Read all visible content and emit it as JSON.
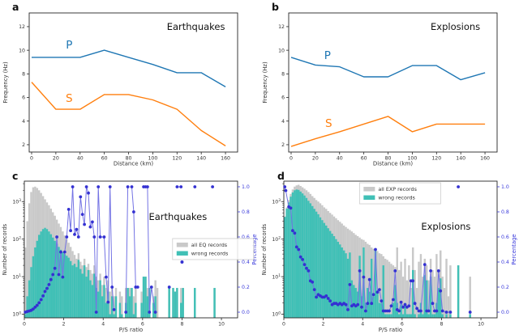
{
  "colors": {
    "p_blue": "#1f77b4",
    "s_orange": "#ff7f0e",
    "all_gray": "#c9c9c9",
    "wrong_teal": "#40c0b6",
    "pct_line": "#7473e4",
    "pct_dot": "#3431d2",
    "pct_axis": "#3b3bdb",
    "spine": "#262626",
    "tick_text": "#333333"
  },
  "chart_data": [
    {
      "letter": "a",
      "type": "line",
      "title": "Earthquakes",
      "title_frac": [
        0.8,
        0.1
      ],
      "xlabel": "Distance (km)",
      "ylabel": "Frequency (Hz)",
      "xlim": [
        -2,
        170
      ],
      "ylim": [
        1.38,
        13.16
      ],
      "xticks": [
        0,
        20,
        40,
        60,
        80,
        100,
        120,
        140,
        160
      ],
      "yticks": [
        2,
        4,
        6,
        8,
        10,
        12
      ],
      "series": [
        {
          "name": "P",
          "color_key": "p_blue",
          "label_pos": [
            31,
            10.45
          ],
          "x": [
            0,
            20,
            40,
            60,
            80,
            100,
            120,
            140,
            160
          ],
          "y": [
            9.4,
            9.4,
            9.4,
            10.0,
            9.4,
            8.8,
            8.1,
            8.1,
            6.9
          ]
        },
        {
          "name": "S",
          "color_key": "s_orange",
          "label_pos": [
            31,
            5.95
          ],
          "x": [
            0,
            20,
            40,
            60,
            80,
            100,
            120,
            140,
            160
          ],
          "y": [
            7.3,
            5.0,
            5.0,
            6.25,
            6.25,
            5.8,
            5.0,
            3.2,
            1.9
          ]
        }
      ]
    },
    {
      "letter": "b",
      "type": "line",
      "title": "Explosions",
      "title_frac": [
        0.8,
        0.1
      ],
      "xlabel": "Distance (km)",
      "ylabel": "Frequency (Hz)",
      "xlim": [
        -2,
        170
      ],
      "ylim": [
        1.38,
        13.16
      ],
      "xticks": [
        0,
        20,
        40,
        60,
        80,
        100,
        120,
        140,
        160
      ],
      "yticks": [
        2,
        4,
        6,
        8,
        10,
        12
      ],
      "series": [
        {
          "name": "P",
          "color_key": "p_blue",
          "label_pos": [
            30,
            9.55
          ],
          "x": [
            0,
            20,
            40,
            60,
            80,
            100,
            120,
            140,
            160
          ],
          "y": [
            9.4,
            8.75,
            8.6,
            7.75,
            7.75,
            8.7,
            8.7,
            7.5,
            8.1
          ]
        },
        {
          "name": "S",
          "color_key": "s_orange",
          "label_pos": [
            31,
            3.8
          ],
          "x": [
            0,
            20,
            40,
            60,
            80,
            100,
            120,
            140,
            160
          ],
          "y": [
            1.85,
            2.5,
            3.1,
            3.75,
            4.4,
            3.1,
            3.75,
            3.75,
            3.75
          ]
        }
      ]
    },
    {
      "letter": "c",
      "type": "histogram",
      "title": "Earthquakes",
      "title_frac": [
        0.72,
        0.26
      ],
      "xlabel": "P/S ratio",
      "ylabel": "Number of records",
      "ylabel_right": "Percentage",
      "xlim": [
        0,
        10.82
      ],
      "xticks": [
        0,
        2,
        4,
        6,
        8,
        10
      ],
      "log_decades": [
        0,
        1,
        2,
        3
      ],
      "count_range": [
        0.8,
        3500
      ],
      "pct_ticks": [
        "0.0",
        "0.2",
        "0.4",
        "0.6",
        "0.8",
        "1.0"
      ],
      "bin_start": 0,
      "bin_width": 0.1,
      "all_label": "all EQ records",
      "wrong_label": "wrong records",
      "legend_frac": [
        0.695,
        0.42
      ],
      "legend_dot": [
        8.0,
        0.4
      ],
      "all_counts": [
        60,
        300,
        900,
        1800,
        2400,
        2500,
        2300,
        2000,
        1700,
        1400,
        1150,
        950,
        800,
        650,
        520,
        420,
        330,
        260,
        210,
        160,
        125,
        100,
        80,
        62,
        48,
        38,
        30,
        42,
        25,
        20,
        30,
        18,
        22,
        15,
        12,
        20,
        10,
        8,
        12,
        6,
        10,
        5,
        8,
        4,
        5,
        3,
        5,
        0,
        4,
        3,
        0,
        5,
        5,
        5,
        5,
        3,
        5,
        0,
        0,
        4,
        10,
        10,
        5,
        5,
        0,
        3,
        8,
        5,
        0,
        0,
        0,
        0,
        0,
        5,
        0,
        5,
        4,
        5,
        0,
        5,
        5,
        0,
        0,
        0,
        0,
        0,
        5,
        0,
        0,
        0,
        0,
        0,
        0,
        0,
        0,
        0,
        5,
        0,
        0,
        0
      ],
      "wrong_counts": [
        1,
        3,
        8,
        18,
        35,
        60,
        90,
        130,
        160,
        185,
        200,
        185,
        160,
        135,
        110,
        90,
        75,
        62,
        52,
        45,
        40,
        36,
        32,
        26,
        20,
        22,
        18,
        28,
        16,
        12,
        20,
        10,
        15,
        8,
        6,
        12,
        5,
        4,
        8,
        3,
        6,
        2,
        4,
        1,
        3,
        1,
        3,
        0,
        2,
        1,
        0,
        2,
        5,
        3,
        5,
        1,
        2,
        0,
        0,
        2,
        10,
        10,
        3,
        5,
        0,
        2,
        3,
        0,
        0,
        0,
        0,
        0,
        0,
        5,
        0,
        5,
        4,
        5,
        0,
        2,
        5,
        0,
        0,
        0,
        0,
        0,
        5,
        0,
        0,
        0,
        0,
        0,
        0,
        0,
        0,
        0,
        5,
        0,
        0,
        0
      ],
      "percentage": [
        [
          0.05,
          0
        ],
        [
          0.15,
          0.005
        ],
        [
          0.25,
          0.01
        ],
        [
          0.35,
          0.015
        ],
        [
          0.45,
          0.025
        ],
        [
          0.55,
          0.04
        ],
        [
          0.65,
          0.055
        ],
        [
          0.75,
          0.075
        ],
        [
          0.85,
          0.1
        ],
        [
          0.95,
          0.13
        ],
        [
          1.05,
          0.165
        ],
        [
          1.15,
          0.19
        ],
        [
          1.25,
          0.22
        ],
        [
          1.35,
          0.26
        ],
        [
          1.45,
          0.3
        ],
        [
          1.55,
          0.35
        ],
        [
          1.65,
          0.6
        ],
        [
          1.75,
          0.3
        ],
        [
          1.85,
          0.48
        ],
        [
          1.95,
          0.28
        ],
        [
          2.05,
          0.48
        ],
        [
          2.15,
          0.6
        ],
        [
          2.25,
          0.82
        ],
        [
          2.35,
          0.65
        ],
        [
          2.45,
          1
        ],
        [
          2.55,
          0.62
        ],
        [
          2.65,
          0.66
        ],
        [
          2.75,
          0.6
        ],
        [
          2.85,
          0.92
        ],
        [
          2.95,
          0.78
        ],
        [
          3.05,
          0.7
        ],
        [
          3.15,
          1
        ],
        [
          3.25,
          0.95
        ],
        [
          3.35,
          0.68
        ],
        [
          3.45,
          0.72
        ],
        [
          3.55,
          0.6
        ],
        [
          3.65,
          0
        ],
        [
          3.75,
          1
        ],
        [
          3.85,
          0.6
        ],
        [
          4.05,
          0.6
        ],
        [
          4.15,
          0.28
        ],
        [
          4.25,
          0.08
        ],
        [
          4.35,
          1
        ],
        [
          4.45,
          0.2
        ],
        [
          4.55,
          0.02
        ],
        null,
        [
          5.15,
          0
        ],
        [
          5.25,
          1
        ],
        null,
        [
          5.45,
          1
        ],
        [
          5.55,
          0.8
        ],
        [
          5.65,
          0.2
        ],
        [
          5.75,
          0.2
        ],
        null,
        [
          6.05,
          1
        ],
        [
          6.15,
          1
        ],
        [
          6.25,
          1
        ],
        [
          6.35,
          0
        ],
        [
          6.45,
          0.2
        ],
        [
          6.65,
          0
        ],
        null,
        [
          7.35,
          0.2
        ],
        null,
        [
          7.75,
          1
        ],
        [
          7.95,
          1
        ],
        null,
        [
          8.65,
          1
        ],
        null,
        [
          9.55,
          1
        ]
      ]
    },
    {
      "letter": "d",
      "type": "histogram",
      "title": "Explosions",
      "title_frac": [
        0.76,
        0.33
      ],
      "xlabel": "P/S ratio",
      "ylabel": "Number of records",
      "ylabel_right": "Percentage",
      "xlim": [
        0,
        10.82
      ],
      "xticks": [
        0,
        2,
        4,
        6,
        8,
        10
      ],
      "log_decades": [
        0,
        1,
        2,
        3
      ],
      "count_range": [
        0.8,
        3500
      ],
      "pct_ticks": [
        "0.0",
        "0.2",
        "0.4",
        "0.6",
        "0.8",
        "1.0"
      ],
      "bin_start": 0,
      "bin_width": 0.1,
      "all_label": "all EXP records",
      "wrong_label": "wrong records",
      "legend_frac": [
        0.355,
        0.012
      ],
      "legend_dot": null,
      "all_counts": [
        400,
        700,
        1100,
        1600,
        2100,
        2500,
        2700,
        2800,
        2600,
        2400,
        2200,
        2000,
        1800,
        1600,
        1400,
        1250,
        1100,
        1000,
        900,
        800,
        700,
        640,
        560,
        500,
        450,
        400,
        360,
        320,
        290,
        260,
        230,
        210,
        190,
        175,
        160,
        145,
        130,
        120,
        110,
        100,
        95,
        85,
        75,
        70,
        60,
        55,
        50,
        48,
        42,
        40,
        35,
        30,
        28,
        25,
        22,
        20,
        18,
        60,
        15,
        25,
        10,
        30,
        8,
        20,
        5,
        60,
        15,
        5,
        25,
        40,
        10,
        30,
        20,
        8,
        30,
        15,
        10,
        40,
        15,
        50,
        10,
        5,
        30,
        3,
        20,
        0,
        0,
        0,
        20,
        0,
        0,
        0,
        0,
        0,
        10,
        0,
        0,
        0,
        0,
        0
      ],
      "wrong_counts": [
        390,
        650,
        950,
        1350,
        1750,
        2000,
        2100,
        2050,
        1850,
        1650,
        1450,
        1250,
        1050,
        900,
        760,
        640,
        540,
        460,
        380,
        320,
        270,
        230,
        195,
        165,
        140,
        120,
        100,
        85,
        72,
        60,
        50,
        42,
        30,
        44,
        8,
        6,
        5,
        4,
        36,
        3,
        60,
        2,
        5,
        4,
        30,
        3,
        50,
        4,
        2,
        2,
        20,
        1,
        1,
        1,
        1,
        2,
        6,
        2,
        1,
        2,
        1,
        2,
        1,
        1,
        1,
        15,
        1,
        0,
        1,
        2,
        1,
        11,
        8,
        1,
        10,
        1,
        1,
        2,
        5,
        9,
        1,
        0,
        1,
        0,
        1,
        0,
        0,
        0,
        20,
        0,
        0,
        0,
        0,
        0,
        1,
        0,
        0,
        0,
        0,
        0
      ],
      "percentage": [
        [
          0.05,
          1
        ],
        [
          0.1,
          0.97
        ],
        [
          0.25,
          0.84
        ],
        [
          0.35,
          0.83
        ],
        [
          0.45,
          0.65
        ],
        [
          0.55,
          0.63
        ],
        [
          0.65,
          0.52
        ],
        [
          0.75,
          0.5
        ],
        [
          0.85,
          0.44
        ],
        [
          0.95,
          0.42
        ],
        [
          1.05,
          0.38
        ],
        [
          1.15,
          0.35
        ],
        [
          1.25,
          0.33
        ],
        [
          1.35,
          0.25
        ],
        [
          1.45,
          0.24
        ],
        [
          1.55,
          0.18
        ],
        [
          1.65,
          0.12
        ],
        [
          1.75,
          0.14
        ],
        [
          1.85,
          0.13
        ],
        [
          1.95,
          0.12
        ],
        [
          2.05,
          0.12
        ],
        [
          2.15,
          0.13
        ],
        [
          2.25,
          0.11
        ],
        [
          2.35,
          0.09
        ],
        [
          2.45,
          0.06
        ],
        [
          2.55,
          0.07
        ],
        [
          2.65,
          0.07
        ],
        [
          2.75,
          0.06
        ],
        [
          2.85,
          0.07
        ],
        [
          2.95,
          0.06
        ],
        [
          3.05,
          0.07
        ],
        [
          3.15,
          0.06
        ],
        [
          3.25,
          0.02
        ],
        [
          3.35,
          0.22
        ],
        [
          3.45,
          0.05
        ],
        [
          3.55,
          0.06
        ],
        [
          3.65,
          0.05
        ],
        [
          3.75,
          0.06
        ],
        [
          3.85,
          0.33
        ],
        [
          3.95,
          0.04
        ],
        [
          4.05,
          0.28
        ],
        [
          4.15,
          0.01
        ],
        [
          4.25,
          0.07
        ],
        [
          4.35,
          0.26
        ],
        [
          4.45,
          0.07
        ],
        [
          4.55,
          0.14
        ],
        [
          4.65,
          0.5
        ],
        [
          4.75,
          0.16
        ],
        [
          4.85,
          0.18
        ],
        [
          4.95,
          0.09
        ],
        [
          5.05,
          0.01
        ],
        [
          5.15,
          0.01
        ],
        [
          5.25,
          0.01
        ],
        [
          5.35,
          0.01
        ],
        [
          5.45,
          0.05
        ],
        [
          5.55,
          0.1
        ],
        [
          5.65,
          0.33
        ],
        [
          5.75,
          0.02
        ],
        [
          5.85,
          0.01
        ],
        [
          5.95,
          0.08
        ],
        [
          6.05,
          0.04
        ],
        [
          6.15,
          0.06
        ],
        [
          6.25,
          0.04
        ],
        [
          6.35,
          0.05
        ],
        [
          6.45,
          0.25
        ],
        [
          6.55,
          0.25
        ],
        [
          6.65,
          0.07
        ],
        [
          6.75,
          0.03
        ],
        [
          6.85,
          0.01
        ],
        [
          6.95,
          0.01
        ],
        [
          7.15,
          0.38
        ],
        [
          7.25,
          0.01
        ],
        [
          7.35,
          0.01
        ],
        [
          7.45,
          0.33
        ],
        [
          7.55,
          0.07
        ],
        [
          7.65,
          0.01
        ],
        [
          7.75,
          0.01
        ],
        [
          7.85,
          0.33
        ],
        [
          7.95,
          0.17
        ],
        [
          8.05,
          0.01
        ],
        [
          8.25,
          0
        ],
        [
          8.45,
          0
        ],
        null,
        [
          8.85,
          1
        ],
        null,
        [
          9.45,
          0
        ]
      ]
    }
  ]
}
